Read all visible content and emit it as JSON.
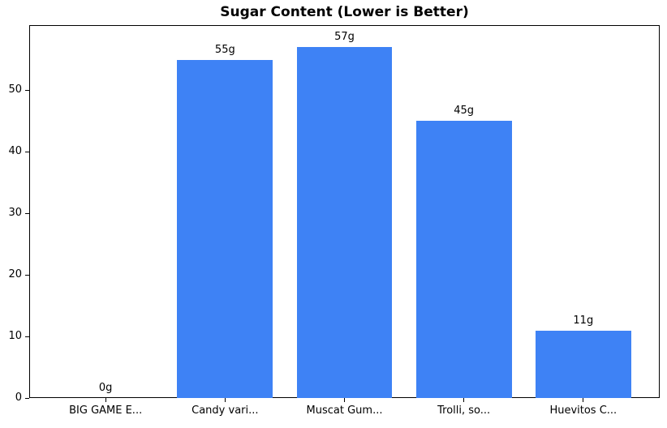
{
  "chart_data": {
    "type": "bar",
    "title": "Sugar Content (Lower is Better)",
    "categories": [
      "BIG GAME E...",
      "Candy vari...",
      "Muscat Gum...",
      "Trolli, so...",
      "Huevitos C..."
    ],
    "values": [
      0,
      55,
      57,
      45,
      11
    ],
    "value_labels": [
      "0g",
      "55g",
      "57g",
      "45g",
      "11g"
    ],
    "xlabel": "",
    "ylabel": "",
    "yticks": [
      0,
      10,
      20,
      30,
      40,
      50
    ],
    "ylim": [
      0,
      60.6
    ],
    "grid": false,
    "legend": "none",
    "bar_color": "#3e82f5",
    "axis_color": "#000000",
    "text_color": "#000000",
    "background_color": "#ffffff"
  }
}
